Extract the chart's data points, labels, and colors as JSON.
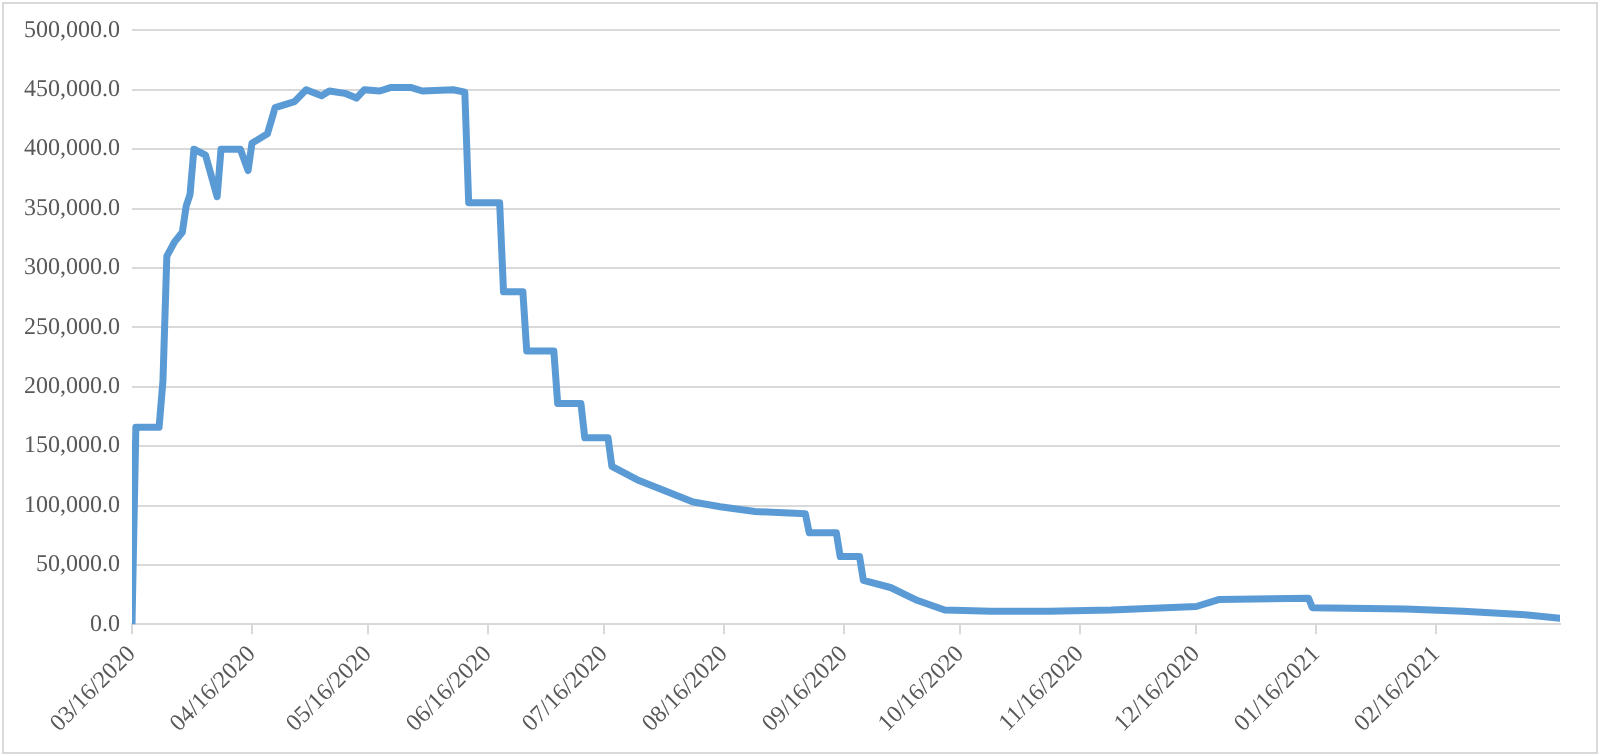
{
  "chart_data": {
    "type": "line",
    "x": [
      "2020-03-16",
      "2020-03-17",
      "2020-03-23",
      "2020-03-24",
      "2020-03-25",
      "2020-03-27",
      "2020-03-29",
      "2020-03-30",
      "2020-03-31",
      "2020-04-01",
      "2020-04-04",
      "2020-04-07",
      "2020-04-08",
      "2020-04-13",
      "2020-04-15",
      "2020-04-16",
      "2020-04-20",
      "2020-04-22",
      "2020-04-27",
      "2020-04-30",
      "2020-05-04",
      "2020-05-06",
      "2020-05-10",
      "2020-05-13",
      "2020-05-15",
      "2020-05-19",
      "2020-05-22",
      "2020-05-27",
      "2020-05-30",
      "2020-06-07",
      "2020-06-10",
      "2020-06-11",
      "2020-06-19",
      "2020-06-20",
      "2020-06-25",
      "2020-06-26",
      "2020-07-03",
      "2020-07-04",
      "2020-07-10",
      "2020-07-11",
      "2020-07-17",
      "2020-07-18",
      "2020-07-25",
      "2020-08-01",
      "2020-08-08",
      "2020-08-15",
      "2020-08-24",
      "2020-09-06",
      "2020-09-07",
      "2020-09-14",
      "2020-09-15",
      "2020-09-20",
      "2020-09-21",
      "2020-09-28",
      "2020-10-05",
      "2020-10-12",
      "2020-10-24",
      "2020-11-08",
      "2020-11-24",
      "2020-12-16",
      "2020-12-22",
      "2021-01-14",
      "2021-01-15",
      "2021-02-08",
      "2021-02-23",
      "2021-03-11",
      "2021-03-20"
    ],
    "series": [
      {
        "color": "#5b9bd5",
        "values": [
          0,
          166000,
          166000,
          205000,
          310000,
          322000,
          330000,
          352000,
          362000,
          400000,
          395000,
          360000,
          400000,
          400000,
          382000,
          405000,
          413000,
          435000,
          440000,
          450000,
          445000,
          449000,
          447000,
          443000,
          450000,
          449000,
          452000,
          452000,
          449000,
          450000,
          448000,
          355000,
          355000,
          280000,
          280000,
          230000,
          230000,
          186000,
          186000,
          157000,
          157000,
          133000,
          121000,
          112000,
          103000,
          99000,
          95000,
          93000,
          77000,
          77000,
          57000,
          57000,
          37000,
          31000,
          20000,
          12000,
          11000,
          11000,
          12000,
          15000,
          21000,
          22000,
          14000,
          13000,
          11000,
          8000,
          5000
        ]
      }
    ],
    "xlim": [
      "2020-03-16",
      "2021-03-20"
    ],
    "xticks": [
      {
        "value": "2020-03-16",
        "label": "03/16/2020"
      },
      {
        "value": "2020-04-16",
        "label": "04/16/2020"
      },
      {
        "value": "2020-05-16",
        "label": "05/16/2020"
      },
      {
        "value": "2020-06-16",
        "label": "06/16/2020"
      },
      {
        "value": "2020-07-16",
        "label": "07/16/2020"
      },
      {
        "value": "2020-08-16",
        "label": "08/16/2020"
      },
      {
        "value": "2020-09-16",
        "label": "09/16/2020"
      },
      {
        "value": "2020-10-16",
        "label": "10/16/2020"
      },
      {
        "value": "2020-11-16",
        "label": "11/16/2020"
      },
      {
        "value": "2020-12-16",
        "label": "12/16/2020"
      },
      {
        "value": "2021-01-16",
        "label": "01/16/2021"
      },
      {
        "value": "2021-02-16",
        "label": "02/16/2021"
      }
    ],
    "ylim": [
      0,
      500000
    ],
    "yticks": [
      {
        "value": 0,
        "label": "0.0"
      },
      {
        "value": 50000,
        "label": "50,000.0"
      },
      {
        "value": 100000,
        "label": "100,000.0"
      },
      {
        "value": 150000,
        "label": "150,000.0"
      },
      {
        "value": 200000,
        "label": "200,000.0"
      },
      {
        "value": 250000,
        "label": "250,000.0"
      },
      {
        "value": 300000,
        "label": "300,000.0"
      },
      {
        "value": 350000,
        "label": "350,000.0"
      },
      {
        "value": 400000,
        "label": "400,000.0"
      },
      {
        "value": 450000,
        "label": "450,000.0"
      },
      {
        "value": 500000,
        "label": "500,000.0"
      }
    ],
    "grid": "y",
    "legend": false,
    "marker": "none",
    "line_style": "solid"
  }
}
